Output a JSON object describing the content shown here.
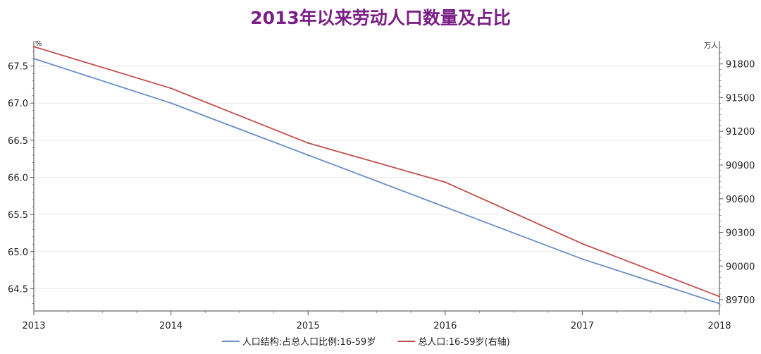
{
  "chart_data": {
    "type": "line",
    "title": "2013年以来劳动人口数量及占比",
    "x": [
      2013,
      2014,
      2015,
      2016,
      2017,
      2018
    ],
    "xticks": [
      "2013",
      "2014",
      "2015",
      "2016",
      "2017",
      "2018"
    ],
    "left_axis": {
      "unit": "%",
      "ylim": [
        64.2,
        67.8
      ],
      "ticks": [
        "64.5",
        "65.0",
        "65.5",
        "66.0",
        "66.5",
        "67.0",
        "67.5"
      ]
    },
    "right_axis": {
      "unit": "万人",
      "ylim": [
        89600,
        91980
      ],
      "ticks": [
        "89700",
        "90000",
        "90300",
        "90600",
        "90900",
        "91200",
        "91500",
        "91800"
      ]
    },
    "series": [
      {
        "name": "人口结构:占总人口比例:16-59岁",
        "axis": "left",
        "color": "#6a8fc7",
        "values": [
          67.6,
          67.0,
          66.3,
          65.6,
          64.9,
          64.3
        ]
      },
      {
        "name": "总人口:16-59岁(右轴)",
        "axis": "right",
        "color": "#c0504d",
        "values": [
          91954,
          91583,
          91096,
          90747,
          90199,
          89729
        ]
      }
    ],
    "grid": true,
    "legend": "bottom-center"
  }
}
